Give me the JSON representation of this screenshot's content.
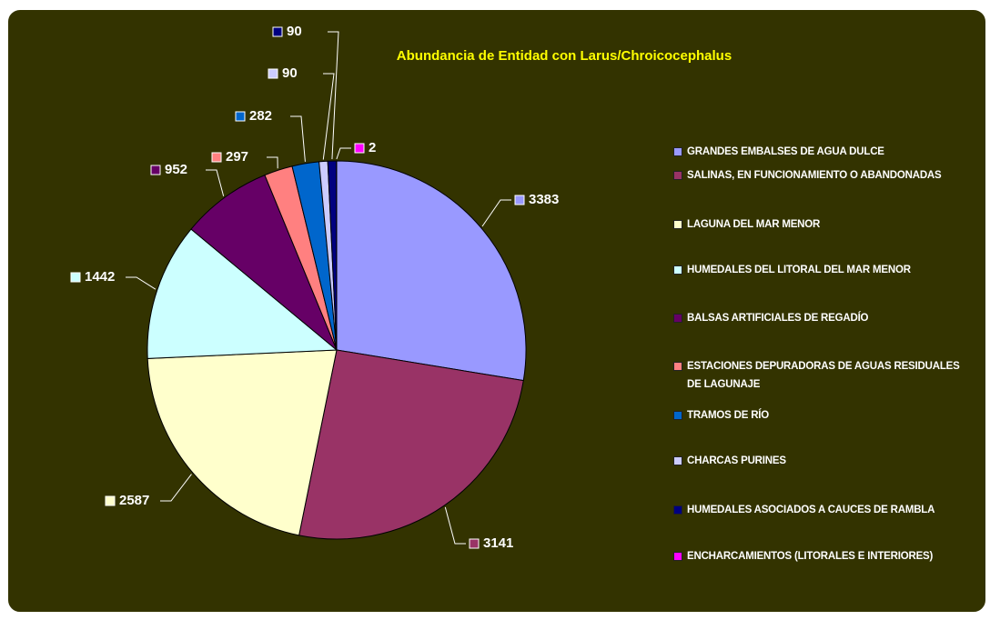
{
  "chart_data": {
    "type": "pie",
    "title": "Abundancia de Entidad con Larus/Chroicocephalus",
    "categories": [
      "GRANDES EMBALSES DE AGUA DULCE",
      "SALINAS, EN FUNCIONAMIENTO O ABANDONADAS",
      "LAGUNA DEL MAR MENOR",
      "HUMEDALES DEL LITORAL DEL MAR MENOR",
      "BALSAS ARTIFICIALES DE REGADÍO",
      "ESTACIONES DEPURADORAS DE AGUAS RESIDUALES DE LAGUNAJE",
      "TRAMOS DE RÍO",
      "CHARCAS PURINES",
      "HUMEDALES ASOCIADOS A CAUCES DE RAMBLA",
      "ENCHARCAMIENTOS (LITORALES E INTERIORES)"
    ],
    "values": [
      3383,
      3141,
      2587,
      1442,
      952,
      297,
      282,
      90,
      90,
      2
    ],
    "colors": [
      "#9999FF",
      "#993366",
      "#FFFFCC",
      "#CCFFFF",
      "#660066",
      "#FF8080",
      "#0066CC",
      "#CCCCFF",
      "#000080",
      "#FF00FF"
    ],
    "legend": "right"
  }
}
